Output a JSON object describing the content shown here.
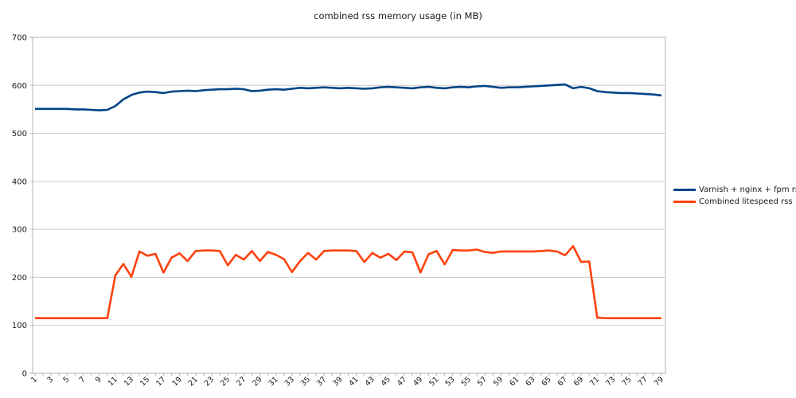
{
  "chart_data": {
    "type": "line",
    "title": "combined rss memory usage (in MB)",
    "x": [
      1,
      2,
      3,
      4,
      5,
      6,
      7,
      8,
      9,
      10,
      11,
      12,
      13,
      14,
      15,
      16,
      17,
      18,
      19,
      20,
      21,
      22,
      23,
      24,
      25,
      26,
      27,
      28,
      29,
      30,
      31,
      32,
      33,
      34,
      35,
      36,
      37,
      38,
      39,
      40,
      41,
      42,
      43,
      44,
      45,
      46,
      47,
      48,
      49,
      50,
      51,
      52,
      53,
      54,
      55,
      56,
      57,
      58,
      59,
      60,
      61,
      62,
      63,
      64,
      65,
      66,
      67,
      68,
      69,
      70,
      71,
      72,
      73,
      74,
      75,
      76,
      77,
      78,
      79
    ],
    "x_tick_labels": [
      1,
      3,
      5,
      7,
      9,
      11,
      13,
      15,
      17,
      19,
      21,
      23,
      25,
      27,
      29,
      31,
      33,
      35,
      37,
      39,
      41,
      43,
      45,
      47,
      49,
      51,
      53,
      55,
      57,
      59,
      61,
      63,
      65,
      67,
      69,
      71,
      73,
      75,
      77,
      79
    ],
    "ylim": [
      0,
      700
    ],
    "y_ticks": [
      0,
      100,
      200,
      300,
      400,
      500,
      600,
      700
    ],
    "grid": "horizontal",
    "legend_position": "right",
    "colors": {
      "grid": "#c9c9c9",
      "border": "#b3b3b3",
      "text": "#1a1a1a"
    },
    "series": [
      {
        "name": "Varnish + nginx + fpm rss",
        "color": "#004586",
        "values": [
          551,
          551,
          551,
          551,
          551,
          550,
          550,
          549,
          548,
          549,
          557,
          571,
          580,
          585,
          587,
          586,
          584,
          587,
          588,
          589,
          588,
          590,
          591,
          592,
          592,
          593,
          592,
          588,
          589,
          591,
          592,
          591,
          593,
          595,
          594,
          595,
          596,
          595,
          594,
          595,
          594,
          593,
          594,
          596,
          597,
          596,
          595,
          594,
          596,
          597,
          595,
          594,
          596,
          597,
          596,
          598,
          599,
          597,
          595,
          596,
          596,
          597,
          598,
          599,
          600,
          601,
          602,
          594,
          597,
          594,
          588,
          586,
          585,
          584,
          584,
          583,
          582,
          581,
          579
        ]
      },
      {
        "name": "Combined litespeed rss",
        "color": "#FF420E",
        "values": [
          115,
          115,
          115,
          115,
          115,
          115,
          115,
          115,
          115,
          115,
          204,
          228,
          201,
          254,
          245,
          249,
          210,
          241,
          250,
          234,
          255,
          256,
          256,
          255,
          225,
          247,
          237,
          255,
          234,
          253,
          247,
          238,
          211,
          234,
          251,
          237,
          255,
          256,
          256,
          256,
          255,
          232,
          251,
          241,
          249,
          236,
          254,
          252,
          210,
          248,
          255,
          227,
          257,
          256,
          256,
          258,
          253,
          251,
          254,
          254,
          254,
          254,
          254,
          255,
          256,
          254,
          246,
          265,
          232,
          233,
          116,
          115,
          115,
          115,
          115,
          115,
          115,
          115,
          115
        ]
      }
    ]
  }
}
